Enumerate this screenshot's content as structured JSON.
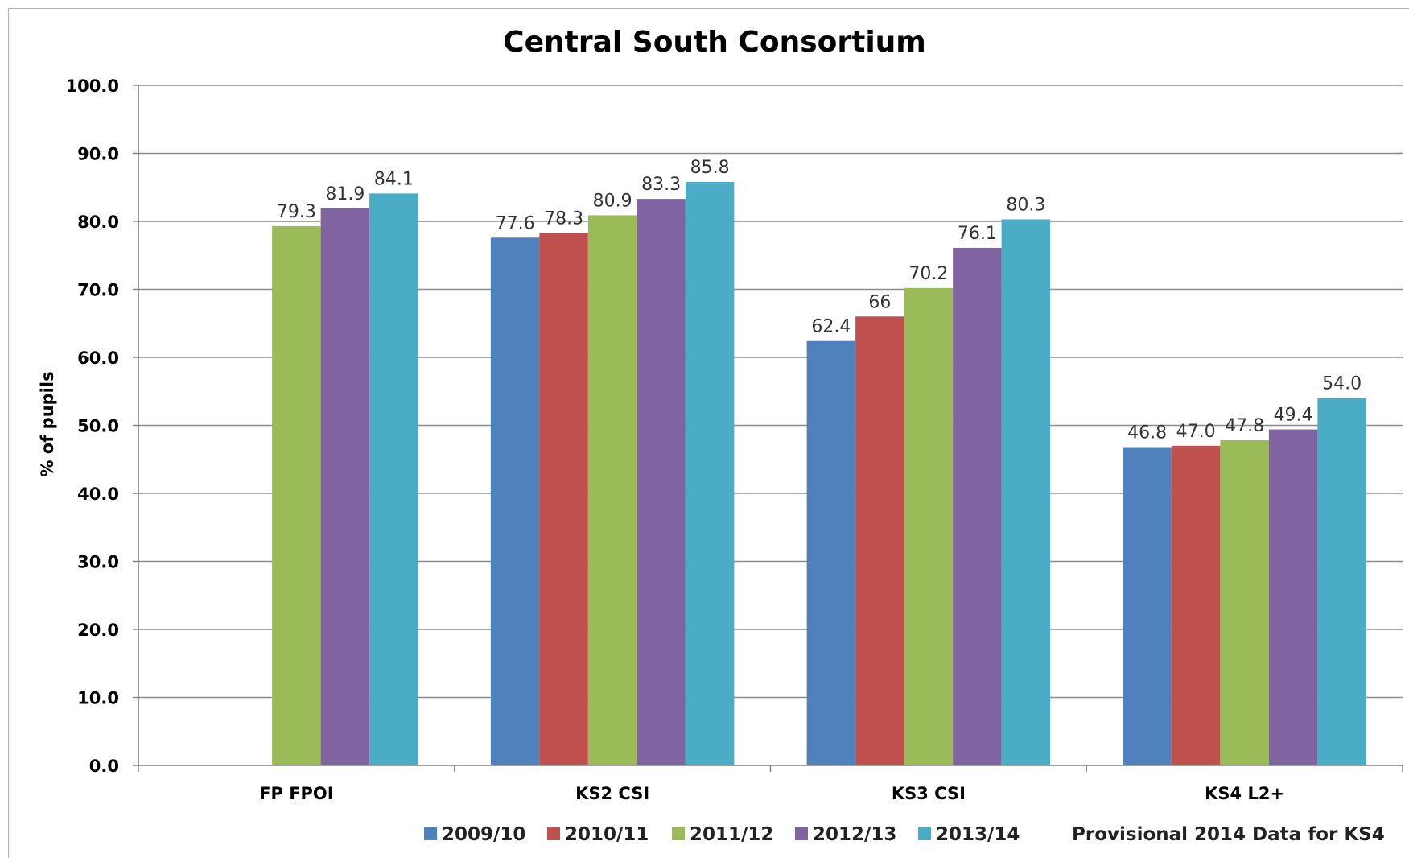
{
  "chart_data": {
    "type": "bar",
    "title": "Central South Consortium",
    "ylabel": "% of pupils",
    "xlabel": "",
    "ylim": [
      0,
      100
    ],
    "yticks": [
      "0.0",
      "10.0",
      "20.0",
      "30.0",
      "40.0",
      "50.0",
      "60.0",
      "70.0",
      "80.0",
      "90.0",
      "100.0"
    ],
    "categories": [
      "FP FPOI",
      "KS2 CSI",
      "KS3 CSI",
      "KS4 L2+"
    ],
    "grid": true,
    "legend_position": "bottom",
    "series": [
      {
        "name": "2009/10",
        "color": "#4f81bd",
        "values": [
          null,
          77.6,
          62.4,
          46.8
        ],
        "labels": [
          "",
          "77.6",
          "62.4",
          "46.8"
        ]
      },
      {
        "name": "2010/11",
        "color": "#c0504d",
        "values": [
          null,
          78.3,
          66,
          47.0
        ],
        "labels": [
          "",
          "78.3",
          "66",
          "47.0"
        ]
      },
      {
        "name": "2011/12",
        "color": "#9bbb59",
        "values": [
          79.3,
          80.9,
          70.2,
          47.8
        ],
        "labels": [
          "79.3",
          "80.9",
          "70.2",
          "47.8"
        ]
      },
      {
        "name": "2012/13",
        "color": "#8064a2",
        "values": [
          81.9,
          83.3,
          76.1,
          49.4
        ],
        "labels": [
          "81.9",
          "83.3",
          "76.1",
          "49.4"
        ]
      },
      {
        "name": "2013/14",
        "color": "#4bacc6",
        "values": [
          84.1,
          85.8,
          80.3,
          54.0
        ],
        "labels": [
          "84.1",
          "85.8",
          "80.3",
          "54.0"
        ]
      }
    ],
    "note": "Provisional 2014 Data for KS4"
  }
}
